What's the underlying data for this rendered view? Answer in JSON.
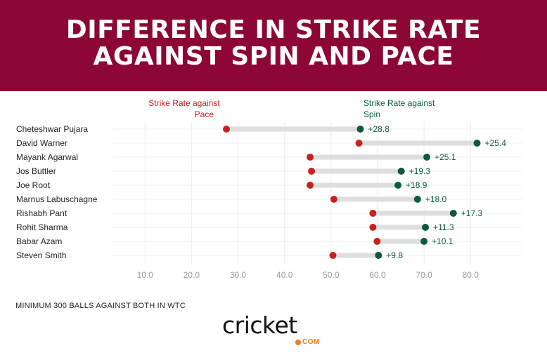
{
  "header": {
    "title_line1": "DIFFERENCE IN STRIKE RATE",
    "title_line2": "AGAINST SPIN AND PACE"
  },
  "chart_data": {
    "type": "dumbbell",
    "legend": {
      "pace_line1": "Strike Rate against",
      "pace_line2": "Pace",
      "spin_line1": "Strike Rate against",
      "spin_line2": "Spin"
    },
    "x_ticks": [
      "10.0",
      "20.0",
      "30.0",
      "40.0",
      "50.0",
      "60.0",
      "70.0",
      "80.0"
    ],
    "x_tick_values": [
      10,
      20,
      30,
      40,
      50,
      60,
      70,
      80
    ],
    "xlim": [
      3,
      91
    ],
    "grid": true,
    "colors": {
      "pace": "#c8201e",
      "spin": "#0c5a3a",
      "bar": "#dedede",
      "grid": "#ececec"
    },
    "players": [
      {
        "name": "Cheteshwar Pujara",
        "pace": 27.5,
        "spin": 56.3,
        "diff_label": "+28.8"
      },
      {
        "name": "David Warner",
        "pace": 56.0,
        "spin": 81.4,
        "diff_label": "+25.4"
      },
      {
        "name": "Mayank Agarwal",
        "pace": 45.5,
        "spin": 70.6,
        "diff_label": "+25.1"
      },
      {
        "name": "Jos Buttler",
        "pace": 45.8,
        "spin": 65.1,
        "diff_label": "+19.3"
      },
      {
        "name": "Joe Root",
        "pace": 45.5,
        "spin": 64.4,
        "diff_label": "+18.9"
      },
      {
        "name": "Marnus Labuschagne",
        "pace": 50.6,
        "spin": 68.6,
        "diff_label": "+18.0"
      },
      {
        "name": "Rishabh Pant",
        "pace": 59.0,
        "spin": 76.3,
        "diff_label": "+17.3"
      },
      {
        "name": "Rohit Sharma",
        "pace": 59.0,
        "spin": 70.3,
        "diff_label": "+11.3"
      },
      {
        "name": "Babar Azam",
        "pace": 59.9,
        "spin": 70.0,
        "diff_label": "+10.1"
      },
      {
        "name": "Steven Smith",
        "pace": 50.4,
        "spin": 60.2,
        "diff_label": "+9.8"
      }
    ]
  },
  "footer": {
    "note": "MINIMUM 300 BALLS AGAINST BOTH IN WTC",
    "logo_text": "cricket",
    "logo_com": "COM"
  }
}
